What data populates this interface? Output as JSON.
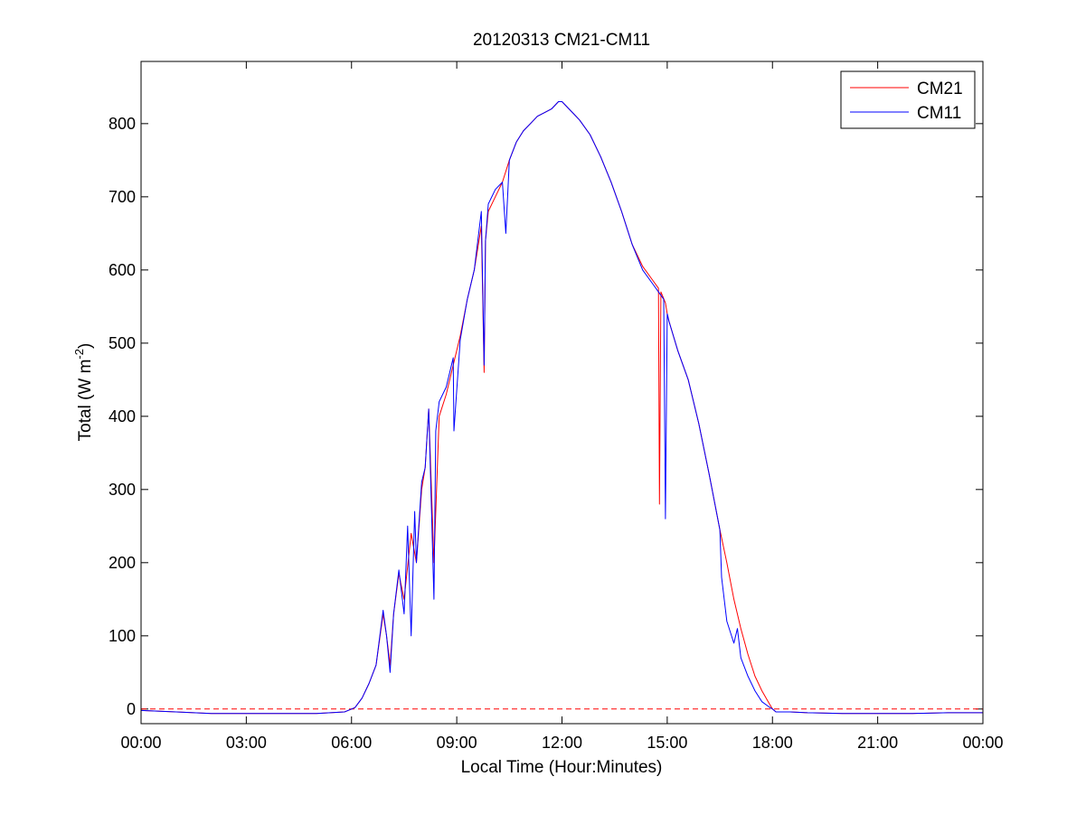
{
  "chart_data": {
    "type": "line",
    "title": "20120313 CM21-CM11",
    "xlabel": "Local Time (Hour:Minutes)",
    "ylabel": {
      "main": "Total (W m",
      "sup": "-2",
      "tail": ")"
    },
    "x_unit": "hour of day",
    "xlim": [
      0,
      24
    ],
    "ylim": [
      -20,
      885
    ],
    "x_ticks": [
      {
        "value": 0,
        "label": "00:00"
      },
      {
        "value": 3,
        "label": "03:00"
      },
      {
        "value": 6,
        "label": "06:00"
      },
      {
        "value": 9,
        "label": "09:00"
      },
      {
        "value": 12,
        "label": "12:00"
      },
      {
        "value": 15,
        "label": "15:00"
      },
      {
        "value": 18,
        "label": "18:00"
      },
      {
        "value": 21,
        "label": "21:00"
      },
      {
        "value": 24,
        "label": "00:00"
      }
    ],
    "y_ticks": [
      0,
      100,
      200,
      300,
      400,
      500,
      600,
      700,
      800
    ],
    "grid": false,
    "legend_position": "top-right",
    "colors": {
      "CM21": "#ff0000",
      "CM11": "#0000ff",
      "baseline": "#ff0000"
    },
    "reference_line": {
      "y": 0,
      "style": "dashed",
      "color": "#ff0000"
    },
    "series": [
      {
        "name": "CM21",
        "color": "#ff0000",
        "x": [
          0,
          1,
          2,
          3,
          4,
          5,
          5.8,
          6.1,
          6.3,
          6.5,
          6.7,
          6.9,
          7.0,
          7.1,
          7.2,
          7.35,
          7.5,
          7.7,
          7.85,
          8.0,
          8.1,
          8.2,
          8.35,
          8.5,
          8.7,
          8.9,
          9.1,
          9.3,
          9.5,
          9.7,
          9.78,
          9.82,
          9.9,
          10.1,
          10.3,
          10.5,
          10.7,
          10.9,
          11.1,
          11.3,
          11.5,
          11.7,
          11.9,
          12.0,
          12.2,
          12.5,
          12.8,
          13.1,
          13.4,
          13.7,
          14.0,
          14.3,
          14.6,
          14.75,
          14.78,
          14.82,
          14.95,
          15.0,
          15.05,
          15.3,
          15.6,
          15.9,
          16.2,
          16.5,
          16.7,
          16.9,
          17.1,
          17.3,
          17.5,
          17.7,
          17.9,
          18.0,
          18.1,
          18.5,
          19,
          20,
          21,
          22,
          23,
          24
        ],
        "y": [
          -2,
          -4,
          -6,
          -6,
          -6,
          -6,
          -4,
          2,
          15,
          35,
          60,
          130,
          100,
          60,
          130,
          185,
          150,
          240,
          200,
          300,
          330,
          410,
          200,
          400,
          430,
          470,
          510,
          560,
          600,
          660,
          460,
          640,
          680,
          700,
          720,
          750,
          775,
          790,
          800,
          810,
          815,
          820,
          830,
          830,
          820,
          805,
          785,
          755,
          720,
          680,
          635,
          605,
          585,
          575,
          280,
          570,
          555,
          540,
          530,
          490,
          450,
          390,
          320,
          245,
          200,
          150,
          110,
          75,
          45,
          25,
          8,
          0,
          -4,
          -4,
          -5,
          -6,
          -6,
          -6,
          -5,
          -5
        ]
      },
      {
        "name": "CM11",
        "color": "#0000ff",
        "x": [
          0,
          1,
          2,
          3,
          4,
          5,
          5.8,
          6.1,
          6.3,
          6.5,
          6.7,
          6.9,
          7.0,
          7.1,
          7.2,
          7.35,
          7.5,
          7.6,
          7.7,
          7.8,
          7.85,
          8.0,
          8.1,
          8.2,
          8.35,
          8.4,
          8.5,
          8.7,
          8.9,
          8.92,
          9.1,
          9.3,
          9.5,
          9.7,
          9.78,
          9.82,
          9.9,
          10.1,
          10.3,
          10.4,
          10.5,
          10.7,
          10.9,
          11.1,
          11.3,
          11.5,
          11.7,
          11.9,
          12.0,
          12.2,
          12.5,
          12.8,
          13.1,
          13.4,
          13.7,
          14.0,
          14.3,
          14.6,
          14.75,
          14.9,
          14.95,
          15.0,
          15.05,
          15.3,
          15.6,
          15.9,
          16.2,
          16.5,
          16.55,
          16.7,
          16.9,
          17.0,
          17.1,
          17.3,
          17.5,
          17.7,
          17.9,
          18.0,
          18.1,
          18.5,
          19,
          20,
          21,
          22,
          23,
          24
        ],
        "y": [
          -2,
          -4,
          -6,
          -6,
          -6,
          -6,
          -4,
          2,
          15,
          35,
          60,
          135,
          100,
          50,
          130,
          190,
          130,
          250,
          100,
          270,
          200,
          310,
          330,
          410,
          150,
          380,
          420,
          440,
          480,
          380,
          505,
          560,
          600,
          680,
          470,
          640,
          690,
          710,
          720,
          650,
          750,
          775,
          790,
          800,
          810,
          815,
          820,
          830,
          830,
          820,
          805,
          785,
          755,
          720,
          680,
          635,
          600,
          580,
          570,
          560,
          260,
          540,
          530,
          490,
          450,
          390,
          320,
          245,
          180,
          120,
          90,
          110,
          70,
          45,
          25,
          10,
          3,
          0,
          -4,
          -4,
          -5,
          -6,
          -6,
          -6,
          -5,
          -5
        ]
      }
    ]
  }
}
